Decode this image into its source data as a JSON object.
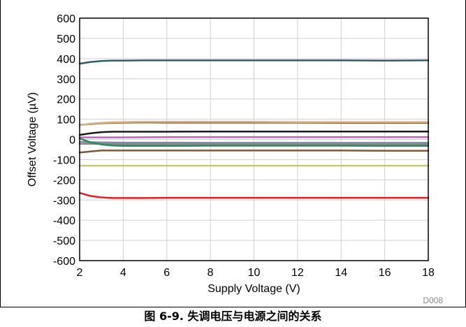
{
  "chart_data": {
    "type": "line",
    "xlabel": "Supply Voltage (V)",
    "ylabel": "Offset Voltage (µV)",
    "xlim": [
      2,
      18
    ],
    "ylim": [
      -600,
      600
    ],
    "x_ticks": [
      2,
      4,
      6,
      8,
      10,
      12,
      14,
      16,
      18
    ],
    "y_ticks": [
      600,
      500,
      400,
      300,
      200,
      100,
      0,
      -100,
      -200,
      -300,
      -400,
      -500,
      -600
    ],
    "grid": true,
    "legend": "none",
    "series": [
      {
        "color": "#2e5e6e",
        "x": [
          2,
          2.5,
          3,
          3.5,
          4,
          5,
          6,
          8,
          10,
          12,
          14,
          16,
          18
        ],
        "y": [
          375,
          383,
          388,
          390,
          390,
          391,
          391,
          391,
          391,
          391,
          391,
          390,
          391
        ]
      },
      {
        "color": "#a0522d",
        "x": [
          2,
          2.5,
          3,
          3.5,
          4,
          5,
          6,
          8,
          10,
          12,
          14,
          16,
          18
        ],
        "y": [
          72,
          76,
          80,
          82,
          83,
          84,
          83,
          83,
          83,
          83,
          82,
          82,
          82
        ]
      },
      {
        "color": "#d4b88c",
        "x": [
          2,
          2.5,
          3,
          3.5,
          4,
          5,
          6,
          8,
          10,
          12,
          14,
          16,
          18
        ],
        "y": [
          70,
          78,
          82,
          85,
          86,
          88,
          87,
          87,
          87,
          86,
          86,
          86,
          86
        ]
      },
      {
        "color": "#1a1a1a",
        "x": [
          2,
          2.5,
          3,
          3.5,
          4,
          5,
          6,
          8,
          10,
          12,
          14,
          16,
          18
        ],
        "y": [
          22,
          30,
          36,
          38,
          38,
          38,
          38,
          39,
          39,
          39,
          39,
          39,
          39
        ]
      },
      {
        "color": "#c060c0",
        "x": [
          2,
          3,
          4,
          6,
          8,
          10,
          12,
          14,
          16,
          18
        ],
        "y": [
          10,
          10,
          10,
          11,
          11,
          11,
          11,
          11,
          11,
          11
        ]
      },
      {
        "color": "#7a8fa0",
        "x": [
          2,
          3,
          4,
          6,
          8,
          10,
          12,
          14,
          16,
          18
        ],
        "y": [
          -12,
          -15,
          -16,
          -16,
          -17,
          -17,
          -17,
          -17,
          -17,
          -17
        ]
      },
      {
        "color": "#888888",
        "x": [
          2,
          3,
          4,
          6,
          8,
          10,
          12,
          14,
          16,
          18
        ],
        "y": [
          -22,
          -22,
          -23,
          -23,
          -23,
          -23,
          -23,
          -23,
          -23,
          -23
        ]
      },
      {
        "color": "#2a8a5a",
        "x": [
          2,
          2.5,
          3,
          3.5,
          4,
          5,
          6,
          8,
          10,
          12,
          14,
          16,
          18
        ],
        "y": [
          5,
          -15,
          -25,
          -30,
          -32,
          -32,
          -32,
          -31,
          -31,
          -31,
          -31,
          -32,
          -32
        ]
      },
      {
        "color": "#7a5a3a",
        "x": [
          2,
          2.5,
          3,
          3.5,
          4,
          5,
          6,
          8,
          10,
          12,
          14,
          16,
          18
        ],
        "y": [
          -65,
          -60,
          -55,
          -55,
          -55,
          -55,
          -55,
          -55,
          -55,
          -55,
          -55,
          -56,
          -56
        ]
      },
      {
        "color": "#c8c878",
        "x": [
          2,
          3,
          4,
          6,
          8,
          10,
          12,
          14,
          16,
          18
        ],
        "y": [
          -130,
          -130,
          -130,
          -130,
          -130,
          -130,
          -130,
          -130,
          -130,
          -130
        ]
      },
      {
        "color": "#e02020",
        "x": [
          2,
          2.5,
          3,
          3.5,
          4,
          5,
          6,
          8,
          10,
          12,
          14,
          16,
          18
        ],
        "y": [
          -265,
          -280,
          -287,
          -290,
          -290,
          -290,
          -289,
          -289,
          -289,
          -289,
          -289,
          -289,
          -289
        ]
      }
    ]
  },
  "figure_code": "D008",
  "caption": "图 6-9. 失调电压与电源之间的关系"
}
